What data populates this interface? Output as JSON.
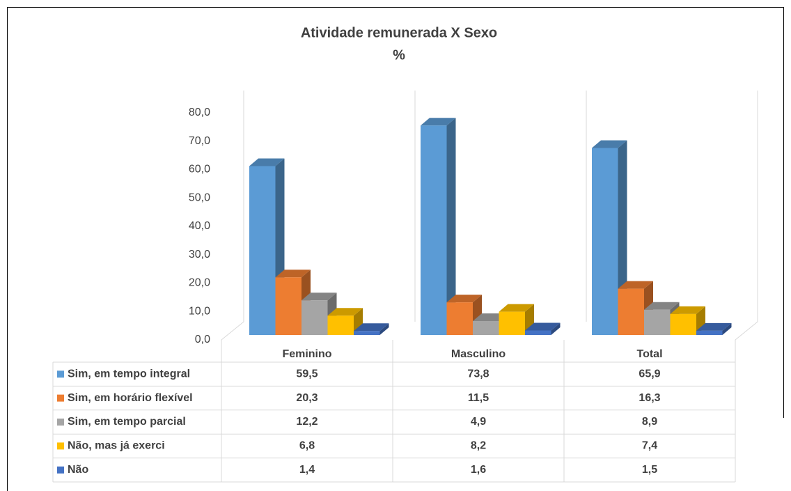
{
  "chart_data": {
    "type": "bar3d",
    "title": "Atividade remunerada X Sexo",
    "subtitle": "%",
    "categories": [
      "Feminino",
      "Masculino",
      "Total"
    ],
    "series": [
      {
        "name": "Sim, em tempo integral",
        "color": "#5b9bd5",
        "values": [
          59.5,
          73.8,
          65.9
        ],
        "value_labels": [
          "59,5",
          "73,8",
          "65,9"
        ]
      },
      {
        "name": "Sim, em horário flexível",
        "color": "#ed7d31",
        "values": [
          20.3,
          11.5,
          16.3
        ],
        "value_labels": [
          "20,3",
          "11,5",
          "16,3"
        ]
      },
      {
        "name": "Sim, em tempo parcial",
        "color": "#a5a5a5",
        "values": [
          12.2,
          4.9,
          8.9
        ],
        "value_labels": [
          "12,2",
          "4,9",
          "8,9"
        ]
      },
      {
        "name": "Não, mas já exerci",
        "color": "#ffc000",
        "values": [
          6.8,
          8.2,
          7.4
        ],
        "value_labels": [
          "6,8",
          "8,2",
          "7,4"
        ]
      },
      {
        "name": "Não",
        "color": "#4472c4",
        "values": [
          1.4,
          1.6,
          1.5
        ],
        "value_labels": [
          "1,4",
          "1,6",
          "1,5"
        ]
      }
    ],
    "ylim": [
      0,
      80
    ],
    "yticks": [
      {
        "value": 0,
        "label": "0,0"
      },
      {
        "value": 10,
        "label": "10,0"
      },
      {
        "value": 20,
        "label": "20,0"
      },
      {
        "value": 30,
        "label": "30,0"
      },
      {
        "value": 40,
        "label": "40,0"
      },
      {
        "value": 50,
        "label": "50,0"
      },
      {
        "value": 60,
        "label": "60,0"
      },
      {
        "value": 70,
        "label": "70,0"
      },
      {
        "value": 80,
        "label": "80,0"
      }
    ],
    "grid": false,
    "data_table": true
  }
}
